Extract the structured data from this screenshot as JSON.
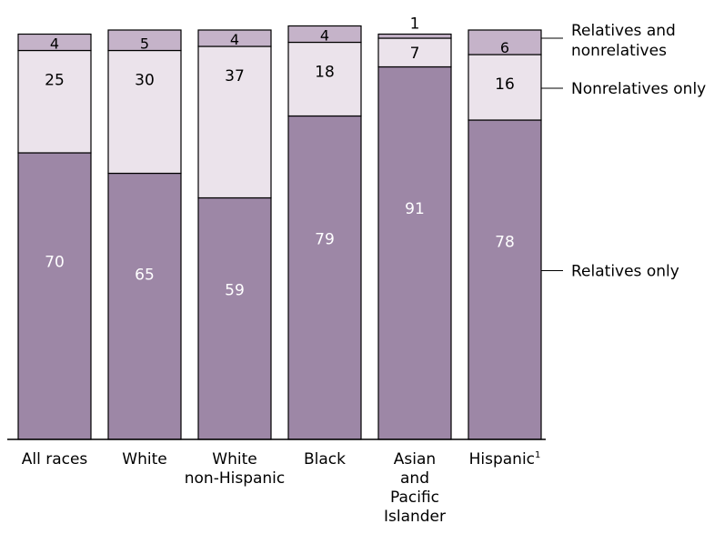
{
  "chart_data": {
    "type": "bar",
    "stacked": true,
    "categories": [
      "All races",
      "White",
      "White non-Hispanic",
      "Black",
      "Asian and Pacific Islander",
      "Hispanic"
    ],
    "category_footnotes": [
      "",
      "",
      "",
      "",
      "",
      "1"
    ],
    "series": [
      {
        "name": "Relatives only",
        "values": [
          70,
          65,
          59,
          79,
          91,
          78
        ]
      },
      {
        "name": "Nonrelatives only",
        "values": [
          25,
          30,
          37,
          18,
          7,
          16
        ]
      },
      {
        "name": "Relatives and nonrelatives",
        "values": [
          4,
          5,
          4,
          4,
          1,
          6
        ]
      }
    ],
    "ylim": [
      0,
      100
    ],
    "legend_placement": "right",
    "colors": {
      "relatives_only": "#9d87a6",
      "nonrelatives_only": "#ebe3eb",
      "relatives_and_nonrelatives": "#c5b3c9",
      "outline": "#000000",
      "label_light": "#ffffff",
      "label_dark": "#000000"
    }
  }
}
